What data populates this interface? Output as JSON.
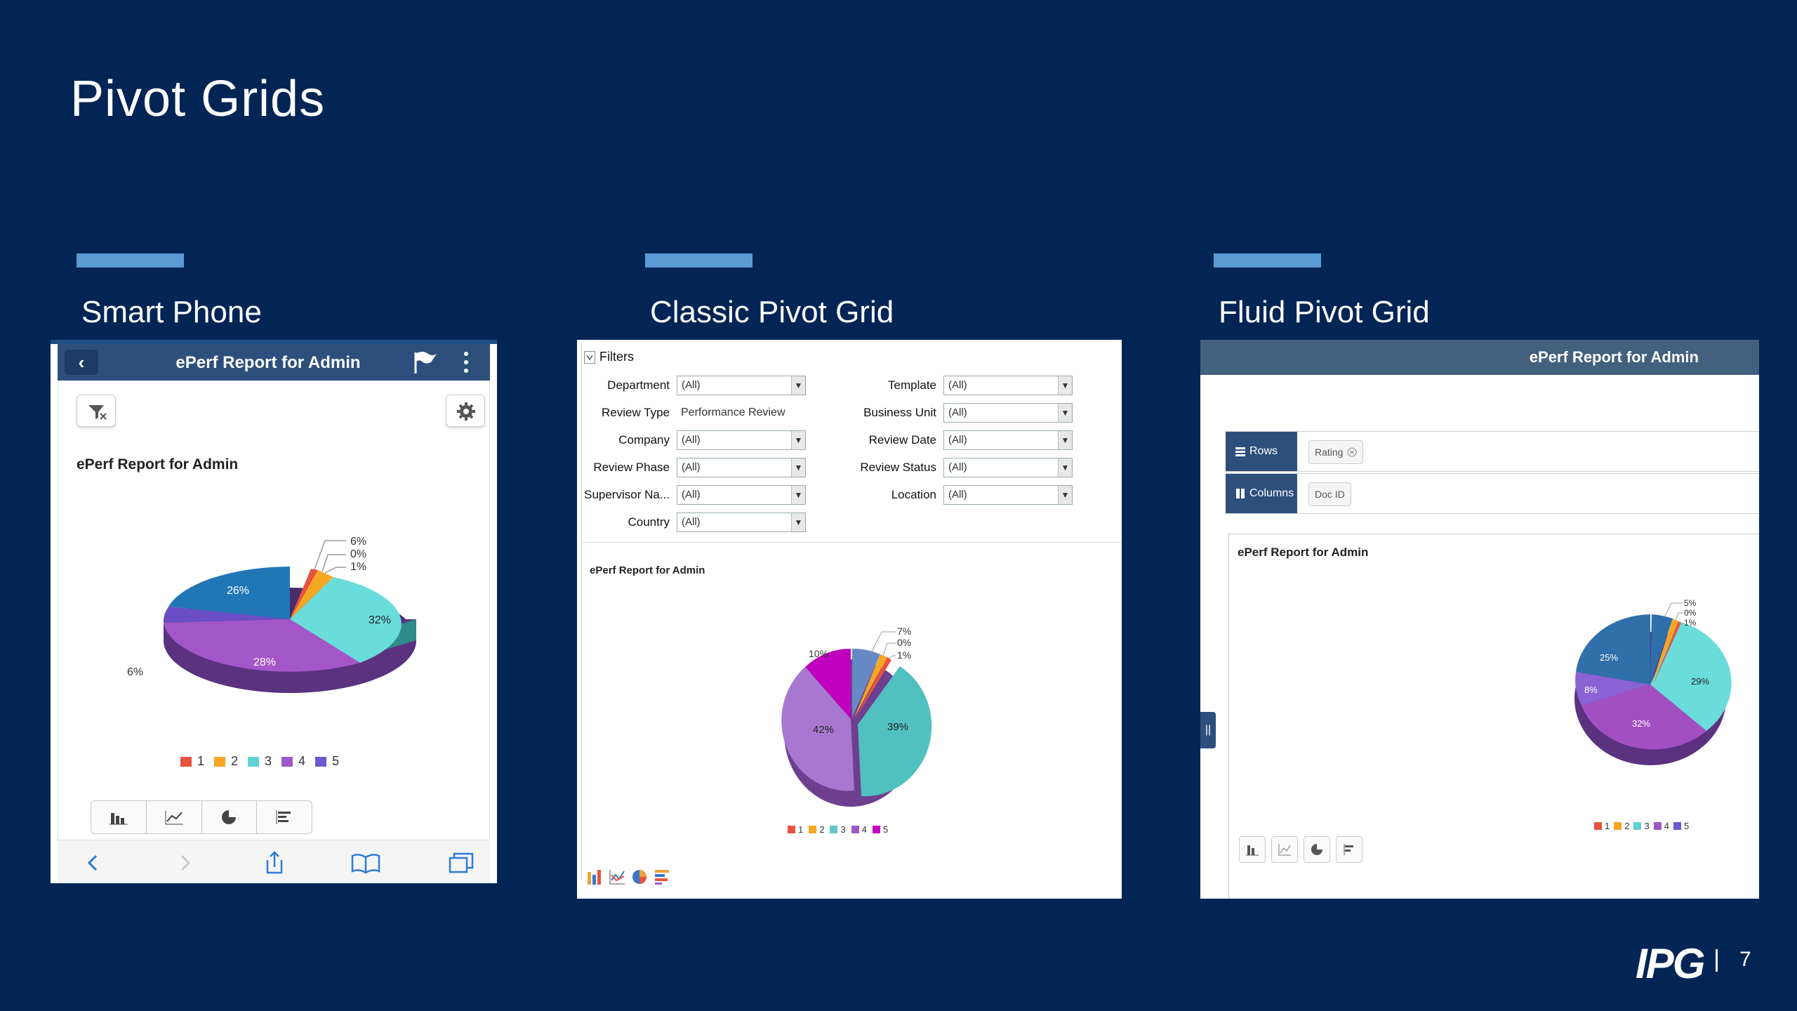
{
  "slide": {
    "title": "Pivot Grids",
    "page_number": "7",
    "logo": "IPG"
  },
  "sections": {
    "smart_phone": "Smart Phone",
    "classic": "Classic Pivot Grid",
    "fluid": "Fluid Pivot Grid"
  },
  "phone": {
    "header_title": "ePerf Report for Admin",
    "report_title": "ePerf Report for Admin",
    "pie_labels": [
      "26%",
      "32%",
      "28%",
      "6%",
      "6%",
      "0%",
      "1%"
    ],
    "legend": [
      {
        "label": "1",
        "color": "#e8533f"
      },
      {
        "label": "2",
        "color": "#f5a623"
      },
      {
        "label": "3",
        "color": "#5fd3d3"
      },
      {
        "label": "4",
        "color": "#9b59c6"
      },
      {
        "label": "5",
        "color": "#6a5acd"
      }
    ]
  },
  "classic": {
    "filters_label": "Filters",
    "filters_left": [
      {
        "label": "Department",
        "value": "(All)"
      },
      {
        "label": "Review Type",
        "value": "Performance Review"
      },
      {
        "label": "Company",
        "value": "(All)"
      },
      {
        "label": "Review Phase",
        "value": "(All)"
      },
      {
        "label": "Supervisor Na...",
        "value": "(All)"
      },
      {
        "label": "Country",
        "value": "(All)"
      }
    ],
    "filters_right": [
      {
        "label": "Template",
        "value": "(All)"
      },
      {
        "label": "Business Unit",
        "value": "(All)"
      },
      {
        "label": "Review Date",
        "value": "(All)"
      },
      {
        "label": "Review Status",
        "value": "(All)"
      },
      {
        "label": "Location",
        "value": "(All)"
      }
    ],
    "report_title": "ePerf Report for Admin",
    "pie_labels": [
      "10%",
      "7%",
      "0%",
      "1%",
      "39%",
      "42%"
    ],
    "legend": [
      {
        "label": "1",
        "color": "#e8533f"
      },
      {
        "label": "2",
        "color": "#f5a623"
      },
      {
        "label": "3",
        "color": "#5fc7c7"
      },
      {
        "label": "4",
        "color": "#9b59c6"
      },
      {
        "label": "5",
        "color": "#c400c4"
      }
    ]
  },
  "fluid": {
    "header_title": "ePerf Report for Admin",
    "rows_label": "Rows",
    "rows_chip": "Rating",
    "columns_label": "Columns",
    "columns_chip": "Doc ID",
    "report_title": "ePerf Report for Admin",
    "pie_labels": [
      "25%",
      "29%",
      "32%",
      "8%",
      "5%",
      "0%",
      "1%"
    ],
    "legend": [
      {
        "label": "1",
        "color": "#e8533f"
      },
      {
        "label": "2",
        "color": "#f5a623"
      },
      {
        "label": "3",
        "color": "#5fd3d3"
      },
      {
        "label": "4",
        "color": "#9b59c6"
      },
      {
        "label": "5",
        "color": "#6a5acd"
      }
    ]
  },
  "colors": {
    "background": "#032555",
    "accent": "#5b9bd5",
    "header_blue": "#2d4f7c"
  }
}
